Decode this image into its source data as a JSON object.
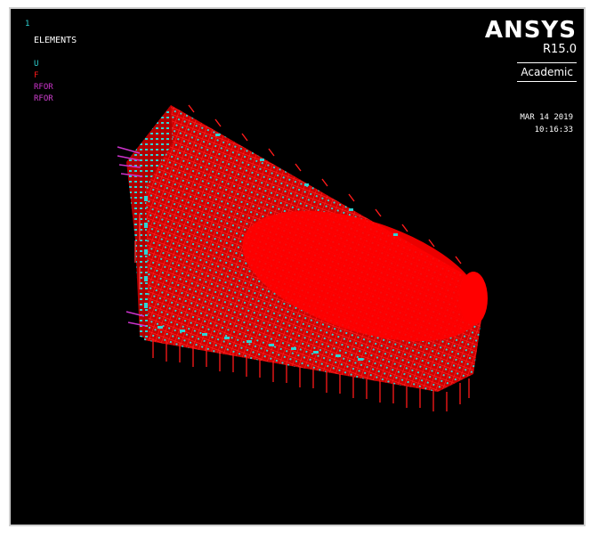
{
  "window": {
    "number": "1"
  },
  "legend": {
    "title": "ELEMENTS",
    "items": [
      {
        "label": "U",
        "color": "#2ed3d3"
      },
      {
        "label": "F",
        "color": "#ff1a1a"
      },
      {
        "label": "RFOR",
        "color": "#cc33cc"
      },
      {
        "label": "RFOR",
        "color": "#d040d0"
      }
    ]
  },
  "branding": {
    "name": "ANSYS",
    "release": "R15.0",
    "edition": "Academic"
  },
  "timestamp": {
    "date": "MAR 14 2019",
    "time": "10:16:33"
  },
  "colors": {
    "background": "#000000",
    "mesh": "#ff0000",
    "constraint": "#2ed3d3",
    "reaction": "#cc33cc",
    "text": "#ffffff"
  }
}
